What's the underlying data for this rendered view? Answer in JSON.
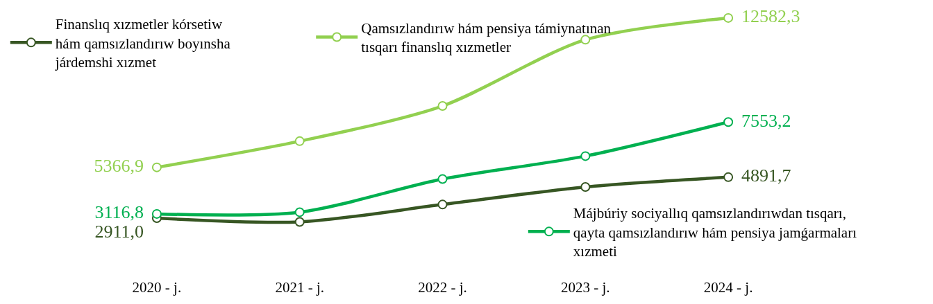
{
  "chart_data": {
    "type": "line",
    "categories": [
      "2020 - j.",
      "2021 - j.",
      "2022 - j.",
      "2023 - j.",
      "2024 - j."
    ],
    "series": [
      {
        "name": "Finanslıq xızmetler kórsetiw hám qamsızlandırıw boyınsha járdemshi xızmet",
        "color": "#375623",
        "values": [
          2911.0,
          2730,
          3570,
          4420,
          4891.7
        ],
        "value_labels": [
          "2911,0",
          null,
          null,
          null,
          "4891,7"
        ]
      },
      {
        "name": "Qamsızlandırıw hám pensiya támiynatınan tısqarı finanslıq xızmetler",
        "color": "#92d050",
        "values": [
          5366.9,
          6630,
          8330,
          11530,
          12582.3
        ],
        "value_labels": [
          "5366,9",
          null,
          null,
          null,
          "12582,3"
        ]
      },
      {
        "name": "Májbúriy sociyallıq qamsızlandırıwdan tısqarı, qayta qamsızlandırıw hám pensiya jamǵarmaları xızmeti",
        "color": "#00b050",
        "values": [
          3116.8,
          3200,
          4800,
          5910,
          7553.2
        ],
        "value_labels": [
          "3116,8",
          null,
          null,
          null,
          "7553,2"
        ]
      }
    ],
    "tick_labels": "x",
    "legend": "left",
    "marker": "circle",
    "line_style": "solid"
  }
}
